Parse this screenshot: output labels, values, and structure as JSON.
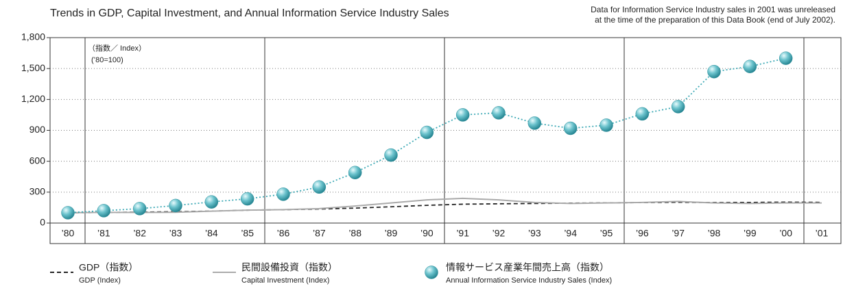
{
  "chart_data": {
    "type": "line",
    "title": "Trends in GDP, Capital Investment, and Annual Information Service Industry Sales",
    "note": [
      "Data for Information Service Industry sales in 2001 was unreleased",
      "at the time of the preparation of this Data Book (end of July 2002)."
    ],
    "annotations": [
      "（指数／ Index）",
      "(’80=100)"
    ],
    "categories": [
      "’80",
      "’81",
      "’82",
      "’83",
      "’84",
      "’85",
      "’86",
      "’87",
      "’88",
      "’89",
      "’90",
      "’91",
      "’92",
      "’93",
      "’94",
      "’95",
      "’96",
      "’97",
      "’98",
      "’99",
      "’00",
      "’01"
    ],
    "ylim": [
      0,
      1800
    ],
    "yticks": [
      0,
      300,
      600,
      900,
      {
        "value": 1200,
        "label": "1,200"
      },
      {
        "value": 1500,
        "label": "1,500"
      },
      {
        "value": 1800,
        "label": "1,800"
      }
    ],
    "grid": true,
    "series": [
      {
        "name": "GDP（指数）",
        "name_en": "GDP (Index)",
        "color": "#222222",
        "style": "dashed",
        "values": [
          100,
          103,
          106,
          110,
          116,
          125,
          130,
          136,
          145,
          158,
          172,
          183,
          187,
          190,
          193,
          196,
          199,
          202,
          199,
          200,
          203,
          201
        ]
      },
      {
        "name": "民間設備投資（指数）",
        "name_en": "Capital Investment (Index)",
        "color": "#aaaaaa",
        "style": "solid",
        "values": [
          100,
          104,
          103,
          105,
          115,
          125,
          130,
          140,
          165,
          195,
          225,
          240,
          225,
          200,
          190,
          195,
          200,
          210,
          195,
          190,
          195,
          195
        ]
      },
      {
        "name": "情報サービス産業年間売上高（指数）",
        "name_en": "Annual Information Service Industry Sales (Index)",
        "color": "#3aa8b4",
        "style": "dotted-markers",
        "values": [
          100,
          120,
          140,
          170,
          205,
          235,
          280,
          350,
          490,
          660,
          880,
          1050,
          1070,
          970,
          920,
          950,
          1060,
          1130,
          1470,
          1520,
          1600,
          null
        ]
      }
    ]
  }
}
